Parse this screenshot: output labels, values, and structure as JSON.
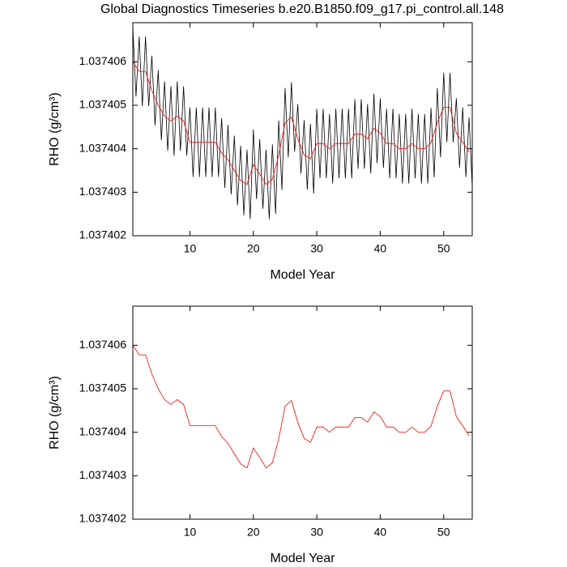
{
  "chart_data": [
    {
      "type": "line",
      "title": "Global Diagnostics Timeseries b.e20.B1850.f09_g17.pi_control.all.148",
      "x_label": "Model Year",
      "y_label": "RHO (g/cm³)",
      "xlim": [
        1,
        54.5
      ],
      "xticks": [
        10,
        20,
        30,
        40,
        50
      ],
      "ylim": [
        1.037402,
        1.0374069
      ],
      "yticks": [
        1.037402,
        1.037403,
        1.037404,
        1.037405,
        1.037406
      ],
      "series": [
        {
          "color": "#000000",
          "x": [
            1,
            1.5,
            2,
            2.5,
            3,
            3.5,
            4,
            4.5,
            5,
            5.5,
            6,
            6.5,
            7,
            7.5,
            8,
            8.5,
            9,
            9.5,
            10,
            10.5,
            11,
            11.5,
            12,
            12.5,
            13,
            13.5,
            14,
            14.5,
            15,
            15.5,
            16,
            16.5,
            17,
            17.5,
            18,
            18.5,
            19,
            19.5,
            20,
            20.5,
            21,
            21.5,
            22,
            22.5,
            23,
            23.5,
            24,
            24.5,
            25,
            25.5,
            26,
            26.5,
            27,
            27.5,
            28,
            28.5,
            29,
            29.5,
            30,
            30.5,
            31,
            31.5,
            32,
            32.5,
            33,
            33.5,
            34,
            34.5,
            35,
            35.5,
            36,
            36.5,
            37,
            37.5,
            38,
            38.5,
            39,
            39.5,
            40,
            40.5,
            41,
            41.5,
            42,
            42.5,
            43,
            43.5,
            44,
            44.5,
            45,
            45.5,
            46,
            46.5,
            47,
            47.5,
            48,
            48.5,
            49,
            49.5,
            50,
            50.5,
            51,
            51.5,
            52,
            52.5,
            53,
            53.5,
            54,
            54.5
          ],
          "values": [
            1.0374068,
            1.0374052,
            1.03740658,
            1.03740498,
            1.03740658,
            1.03740498,
            1.03740614,
            1.03740454,
            1.0374058,
            1.0374042,
            1.03740555,
            1.03740395,
            1.03740544,
            1.03740384,
            1.03740555,
            1.03740395,
            1.03740544,
            1.03740384,
            1.03740495,
            1.03740335,
            1.03740495,
            1.03740335,
            1.03740495,
            1.03740335,
            1.03740495,
            1.03740335,
            1.03740495,
            1.03740335,
            1.0374047,
            1.0374031,
            1.03740455,
            1.03740295,
            1.0374043,
            1.0374027,
            1.03740407,
            1.03740247,
            1.03740398,
            1.03740238,
            1.03740444,
            1.03740284,
            1.03740422,
            1.03740262,
            1.03740398,
            1.03740238,
            1.0374041,
            1.0374025,
            1.03740465,
            1.03740305,
            1.0374054,
            1.0374038,
            1.03740553,
            1.03740393,
            1.03740503,
            1.03740343,
            1.03740466,
            1.03740306,
            1.03740457,
            1.03740297,
            1.03740492,
            1.03740332,
            1.03740492,
            1.03740332,
            1.0374048,
            1.0374032,
            1.03740492,
            1.03740332,
            1.03740492,
            1.03740332,
            1.03740492,
            1.03740332,
            1.03740514,
            1.03740354,
            1.03740514,
            1.03740354,
            1.03740503,
            1.03740343,
            1.03740527,
            1.03740367,
            1.03740516,
            1.03740356,
            1.03740492,
            1.03740332,
            1.03740492,
            1.03740332,
            1.0374048,
            1.0374032,
            1.0374048,
            1.0374032,
            1.03740492,
            1.03740332,
            1.0374048,
            1.0374032,
            1.0374048,
            1.0374032,
            1.03740494,
            1.03740334,
            1.0374054,
            1.0374038,
            1.03740575,
            1.03740415,
            1.03740575,
            1.03740415,
            1.03740516,
            1.03740356,
            1.03740495,
            1.03740335,
            1.03740472,
            1.03740312
          ]
        },
        {
          "color": "#ff0000",
          "x": [
            1,
            2,
            3,
            4,
            5,
            6,
            7,
            8,
            9,
            10,
            11,
            12,
            13,
            14,
            15,
            16,
            17,
            18,
            19,
            20,
            21,
            22,
            23,
            24,
            25,
            26,
            27,
            28,
            29,
            30,
            31,
            32,
            33,
            34,
            35,
            36,
            37,
            38,
            39,
            40,
            41,
            42,
            43,
            44,
            45,
            46,
            47,
            48,
            49,
            50,
            51,
            52,
            53,
            54
          ],
          "values": [
            1.037406,
            1.03740578,
            1.03740578,
            1.03740534,
            1.037405,
            1.03740475,
            1.03740464,
            1.03740475,
            1.03740464,
            1.03740415,
            1.03740415,
            1.03740415,
            1.03740415,
            1.03740415,
            1.0374039,
            1.03740375,
            1.0374035,
            1.03740327,
            1.03740318,
            1.03740364,
            1.03740342,
            1.03740318,
            1.0374033,
            1.03740385,
            1.0374046,
            1.03740473,
            1.03740423,
            1.03740386,
            1.03740377,
            1.03740412,
            1.03740412,
            1.037404,
            1.03740412,
            1.03740412,
            1.03740412,
            1.03740434,
            1.03740434,
            1.03740423,
            1.03740447,
            1.03740436,
            1.03740412,
            1.03740412,
            1.037404,
            1.037404,
            1.03740412,
            1.037404,
            1.037404,
            1.03740414,
            1.0374046,
            1.03740495,
            1.03740495,
            1.03740436,
            1.03740415,
            1.03740392
          ]
        }
      ]
    },
    {
      "type": "line",
      "x_label": "Model Year",
      "y_label": "RHO (g/cm³)",
      "xlim": [
        1,
        54.5
      ],
      "xticks": [
        10,
        20,
        30,
        40,
        50
      ],
      "ylim": [
        1.037402,
        1.0374069
      ],
      "yticks": [
        1.037402,
        1.037403,
        1.037404,
        1.037405,
        1.037406
      ],
      "series": [
        {
          "color": "#ff0000",
          "x": [
            1,
            2,
            3,
            4,
            5,
            6,
            7,
            8,
            9,
            10,
            11,
            12,
            13,
            14,
            15,
            16,
            17,
            18,
            19,
            20,
            21,
            22,
            23,
            24,
            25,
            26,
            27,
            28,
            29,
            30,
            31,
            32,
            33,
            34,
            35,
            36,
            37,
            38,
            39,
            40,
            41,
            42,
            43,
            44,
            45,
            46,
            47,
            48,
            49,
            50,
            51,
            52,
            53,
            54
          ],
          "values": [
            1.037406,
            1.03740578,
            1.03740578,
            1.03740534,
            1.037405,
            1.03740475,
            1.03740464,
            1.03740475,
            1.03740464,
            1.03740415,
            1.03740415,
            1.03740415,
            1.03740415,
            1.03740415,
            1.0374039,
            1.03740375,
            1.0374035,
            1.03740327,
            1.03740318,
            1.03740364,
            1.03740342,
            1.03740318,
            1.0374033,
            1.03740385,
            1.0374046,
            1.03740473,
            1.03740423,
            1.03740386,
            1.03740377,
            1.03740412,
            1.03740412,
            1.037404,
            1.03740412,
            1.03740412,
            1.03740412,
            1.03740434,
            1.03740434,
            1.03740423,
            1.03740447,
            1.03740436,
            1.03740412,
            1.03740412,
            1.037404,
            1.037404,
            1.03740412,
            1.037404,
            1.037404,
            1.03740414,
            1.0374046,
            1.03740495,
            1.03740495,
            1.03740436,
            1.03740415,
            1.03740392
          ]
        }
      ]
    }
  ]
}
